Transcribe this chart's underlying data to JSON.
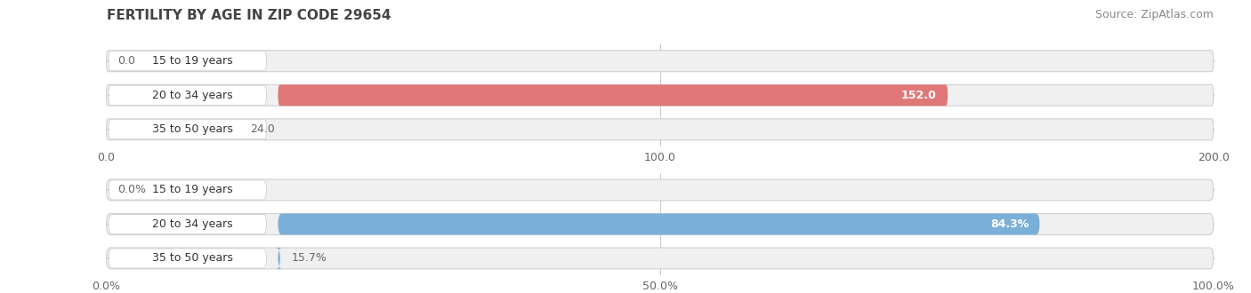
{
  "title": "FERTILITY BY AGE IN ZIP CODE 29654",
  "source": "Source: ZipAtlas.com",
  "top_chart": {
    "categories": [
      "15 to 19 years",
      "20 to 34 years",
      "35 to 50 years"
    ],
    "values": [
      0.0,
      152.0,
      24.0
    ],
    "xlim": [
      0,
      200
    ],
    "xticks": [
      0.0,
      100.0,
      200.0
    ],
    "bar_color": "#e07878",
    "bar_bg_color": "#f0f0f0",
    "label_bg_color": "#ffffff",
    "bar_height": 0.62,
    "label_color_inside": "#ffffff",
    "label_color_outside": "#666666"
  },
  "bottom_chart": {
    "categories": [
      "15 to 19 years",
      "20 to 34 years",
      "35 to 50 years"
    ],
    "values": [
      0.0,
      84.3,
      15.7
    ],
    "xlim": [
      0,
      100
    ],
    "xticks": [
      0.0,
      50.0,
      100.0
    ],
    "bar_color": "#7ab0d8",
    "bar_bg_color": "#f0f0f0",
    "label_bg_color": "#ffffff",
    "bar_height": 0.62,
    "label_color_inside": "#ffffff",
    "label_color_outside": "#666666"
  },
  "fig_bg_color": "#ffffff",
  "title_fontsize": 11,
  "source_fontsize": 9,
  "label_fontsize": 9,
  "tick_fontsize": 9,
  "cat_fontsize": 9
}
